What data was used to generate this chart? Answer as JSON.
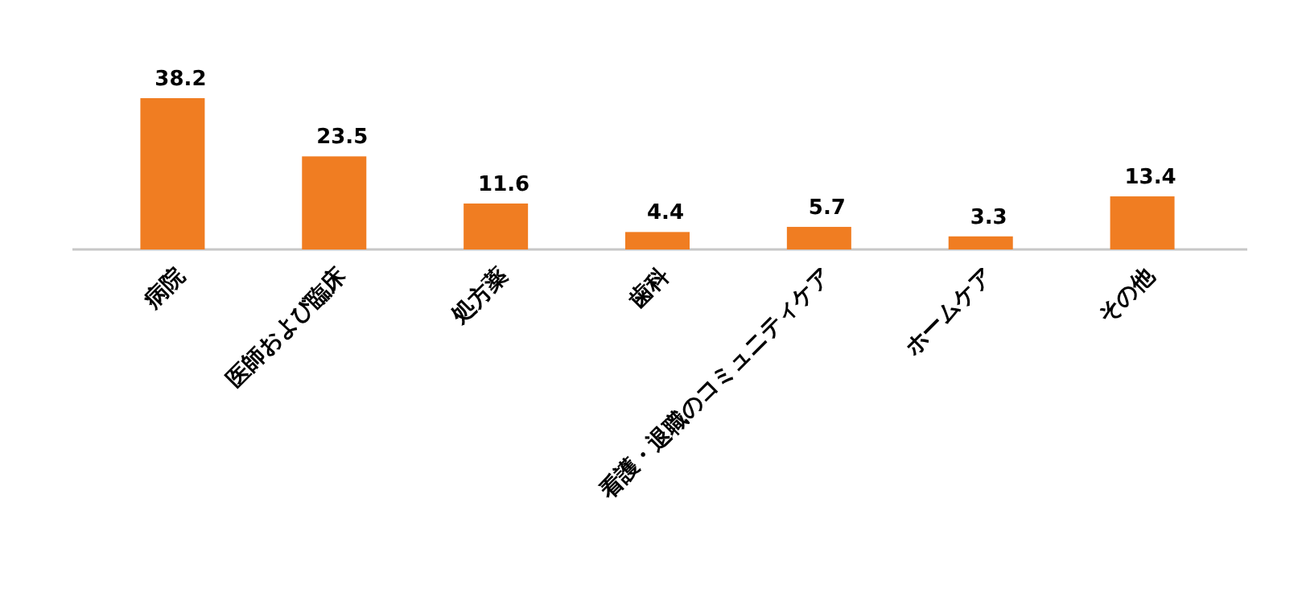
{
  "chart_data": {
    "type": "bar",
    "categories": [
      "病院",
      "医師および臨床",
      "処方薬",
      "歯科",
      "看護・退職のコミュニティケア",
      "ホームケア",
      "その他"
    ],
    "series": [
      {
        "color": "#f07d22",
        "values": [
          38.2,
          23.5,
          11.6,
          4.4,
          5.7,
          3.3,
          13.4
        ]
      }
    ],
    "data_labels": true
  }
}
